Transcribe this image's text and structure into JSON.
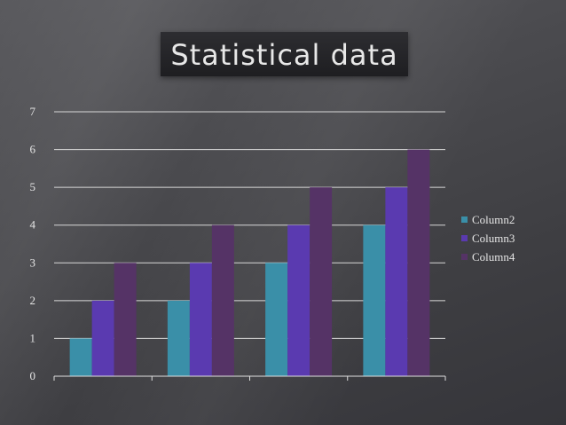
{
  "chart_data": {
    "type": "bar",
    "title": "Statistical data",
    "categories": [
      "",
      "",
      "",
      ""
    ],
    "series": [
      {
        "name": "Column2",
        "values": [
          1,
          2,
          3,
          4
        ],
        "color": "#3a8fa8"
      },
      {
        "name": "Column3",
        "values": [
          2,
          3,
          4,
          5
        ],
        "color": "#5a3ab0"
      },
      {
        "name": "Column4",
        "values": [
          3,
          4,
          5,
          6
        ],
        "color": "#553366"
      }
    ],
    "ylim": [
      0,
      7
    ],
    "yticks": [
      0,
      1,
      2,
      3,
      4,
      5,
      6,
      7
    ],
    "xlabel": "",
    "ylabel": "",
    "grid": true,
    "legend_position": "right"
  }
}
